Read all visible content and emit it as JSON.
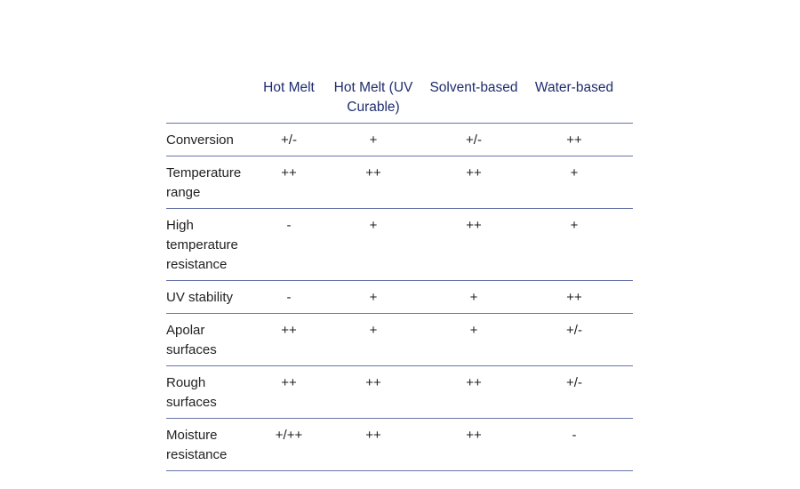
{
  "table": {
    "columns": [
      "Hot Melt",
      "Hot Melt (UV Curable)",
      "Solvent-based",
      "Water-based"
    ],
    "rows": [
      {
        "label": "Conversion",
        "values": [
          "+/-",
          "+",
          "+/-",
          "++"
        ]
      },
      {
        "label": "Temperature range",
        "values": [
          "++",
          "++",
          "++",
          "+"
        ]
      },
      {
        "label": "High temperature resistance",
        "values": [
          "-",
          "+",
          "++",
          "+"
        ]
      },
      {
        "label": "UV stability",
        "values": [
          "-",
          "+",
          "+",
          "++"
        ]
      },
      {
        "label": "Apolar surfaces",
        "values": [
          "++",
          "+",
          "+",
          "+/-"
        ]
      },
      {
        "label": "Rough surfaces",
        "values": [
          "++",
          "++",
          "++",
          "+/-"
        ]
      },
      {
        "label": "Moisture resistance",
        "values": [
          "+/++",
          "++",
          "++",
          "-"
        ]
      }
    ]
  }
}
